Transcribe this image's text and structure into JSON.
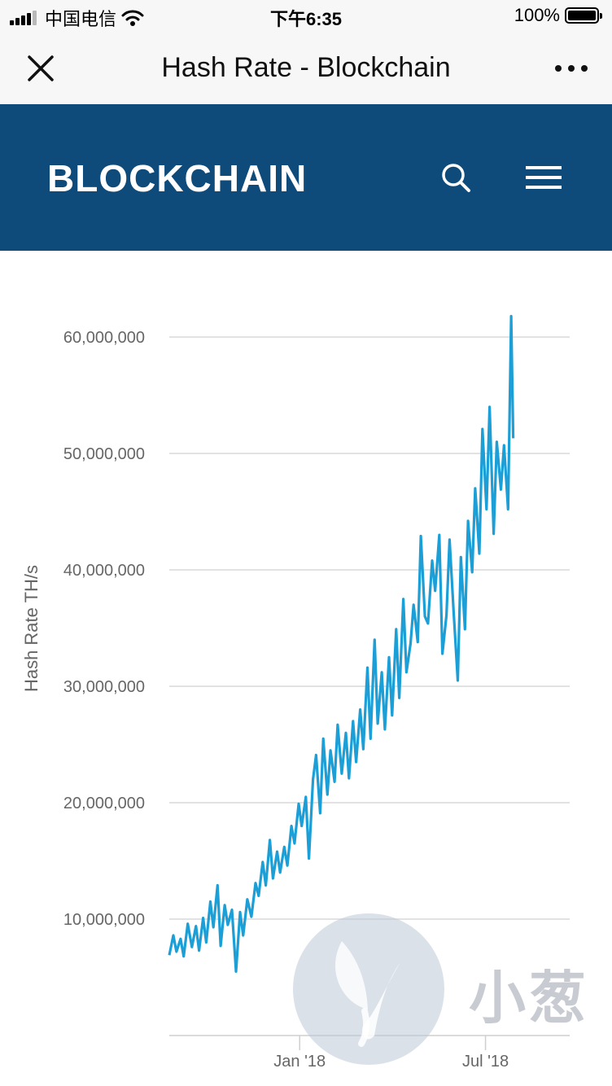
{
  "status_bar": {
    "carrier": "中国电信",
    "time": "下午6:35",
    "battery": "100%"
  },
  "nav": {
    "title": "Hash Rate - Blockchain"
  },
  "site": {
    "logo": "BLOCKCHAIN"
  },
  "watermark": {
    "text": "小葱"
  },
  "colors": {
    "header_bg": "#0e4a7a",
    "line": "#1b9fd6",
    "grid": "#d9d9d9",
    "text": "#666666"
  },
  "chart_data": {
    "type": "line",
    "title": "",
    "xlabel": "",
    "ylabel": "Hash Rate TH/s",
    "xlim": [
      "2017-08-27",
      "2018-09-21"
    ],
    "ylim": [
      0,
      60000000
    ],
    "y_ticks": [
      {
        "value": 10000000,
        "label": "10,000,000"
      },
      {
        "value": 20000000,
        "label": "20,000,000"
      },
      {
        "value": 30000000,
        "label": "30,000,000"
      },
      {
        "value": 40000000,
        "label": "40,000,000"
      },
      {
        "value": 50000000,
        "label": "50,000,000"
      },
      {
        "value": 60000000,
        "label": "60,000,000"
      }
    ],
    "x_ticks": [
      {
        "value": "2018-01-01",
        "label": "Jan '18"
      },
      {
        "value": "2018-07-01",
        "label": "Jul '18"
      }
    ],
    "grid": true,
    "legend": "none",
    "series": [
      {
        "color": "#1b9fd6",
        "points": [
          [
            "2017-08-27",
            6900000
          ],
          [
            "2017-08-31",
            8600000
          ],
          [
            "2017-09-03",
            7200000
          ],
          [
            "2017-09-07",
            8300000
          ],
          [
            "2017-09-10",
            6800000
          ],
          [
            "2017-09-14",
            9600000
          ],
          [
            "2017-09-18",
            7600000
          ],
          [
            "2017-09-22",
            9400000
          ],
          [
            "2017-09-25",
            7300000
          ],
          [
            "2017-09-29",
            10100000
          ],
          [
            "2017-10-02",
            8000000
          ],
          [
            "2017-10-06",
            11500000
          ],
          [
            "2017-10-09",
            9300000
          ],
          [
            "2017-10-13",
            12900000
          ],
          [
            "2017-10-16",
            7700000
          ],
          [
            "2017-10-20",
            11200000
          ],
          [
            "2017-10-23",
            9500000
          ],
          [
            "2017-10-27",
            10800000
          ],
          [
            "2017-10-31",
            5500000
          ],
          [
            "2017-11-04",
            10600000
          ],
          [
            "2017-11-07",
            8600000
          ],
          [
            "2017-11-11",
            11700000
          ],
          [
            "2017-11-15",
            10200000
          ],
          [
            "2017-11-19",
            13100000
          ],
          [
            "2017-11-22",
            12000000
          ],
          [
            "2017-11-26",
            14900000
          ],
          [
            "2017-11-29",
            12900000
          ],
          [
            "2017-12-03",
            16800000
          ],
          [
            "2017-12-06",
            13500000
          ],
          [
            "2017-12-10",
            15800000
          ],
          [
            "2017-12-13",
            14000000
          ],
          [
            "2017-12-17",
            16200000
          ],
          [
            "2017-12-20",
            14600000
          ],
          [
            "2017-12-24",
            18000000
          ],
          [
            "2017-12-27",
            16500000
          ],
          [
            "2017-12-31",
            19900000
          ],
          [
            "2018-01-03",
            18000000
          ],
          [
            "2018-01-07",
            20500000
          ],
          [
            "2018-01-10",
            15200000
          ],
          [
            "2018-01-14",
            22000000
          ],
          [
            "2018-01-17",
            24100000
          ],
          [
            "2018-01-21",
            19100000
          ],
          [
            "2018-01-24",
            25500000
          ],
          [
            "2018-01-28",
            20700000
          ],
          [
            "2018-01-31",
            24500000
          ],
          [
            "2018-02-04",
            21800000
          ],
          [
            "2018-02-07",
            26700000
          ],
          [
            "2018-02-11",
            22500000
          ],
          [
            "2018-02-15",
            26000000
          ],
          [
            "2018-02-18",
            22100000
          ],
          [
            "2018-02-22",
            27000000
          ],
          [
            "2018-02-25",
            23500000
          ],
          [
            "2018-03-01",
            28000000
          ],
          [
            "2018-03-04",
            24600000
          ],
          [
            "2018-03-08",
            31600000
          ],
          [
            "2018-03-11",
            25500000
          ],
          [
            "2018-03-15",
            34000000
          ],
          [
            "2018-03-18",
            26800000
          ],
          [
            "2018-03-22",
            31200000
          ],
          [
            "2018-03-25",
            26300000
          ],
          [
            "2018-03-29",
            32500000
          ],
          [
            "2018-04-01",
            27500000
          ],
          [
            "2018-04-05",
            34900000
          ],
          [
            "2018-04-08",
            29000000
          ],
          [
            "2018-04-12",
            37500000
          ],
          [
            "2018-04-15",
            31200000
          ],
          [
            "2018-04-19",
            33700000
          ],
          [
            "2018-04-22",
            37000000
          ],
          [
            "2018-04-26",
            33800000
          ],
          [
            "2018-04-29",
            42900000
          ],
          [
            "2018-05-03",
            36000000
          ],
          [
            "2018-05-06",
            35400000
          ],
          [
            "2018-05-10",
            40800000
          ],
          [
            "2018-05-13",
            38200000
          ],
          [
            "2018-05-17",
            43000000
          ],
          [
            "2018-05-20",
            32800000
          ],
          [
            "2018-05-24",
            36100000
          ],
          [
            "2018-05-27",
            42600000
          ],
          [
            "2018-05-31",
            36400000
          ],
          [
            "2018-06-04",
            30500000
          ],
          [
            "2018-06-07",
            41100000
          ],
          [
            "2018-06-11",
            34900000
          ],
          [
            "2018-06-14",
            44200000
          ],
          [
            "2018-06-18",
            39800000
          ],
          [
            "2018-06-21",
            47000000
          ],
          [
            "2018-06-25",
            41400000
          ],
          [
            "2018-06-28",
            52100000
          ],
          [
            "2018-07-02",
            45200000
          ],
          [
            "2018-07-05",
            54000000
          ],
          [
            "2018-07-09",
            43100000
          ],
          [
            "2018-07-12",
            51000000
          ],
          [
            "2018-07-16",
            46900000
          ],
          [
            "2018-07-19",
            50700000
          ],
          [
            "2018-07-23",
            45200000
          ],
          [
            "2018-07-26",
            61800000
          ],
          [
            "2018-07-28",
            51300000
          ]
        ]
      }
    ]
  }
}
